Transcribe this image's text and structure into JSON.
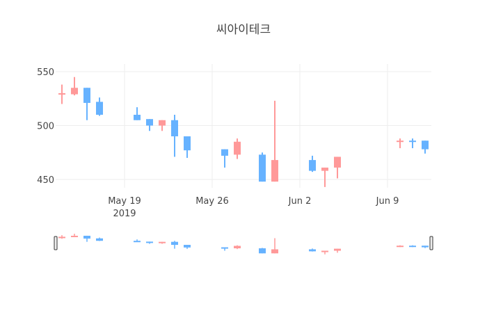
{
  "chart_data": {
    "type": "candlestick",
    "title": "씨아이테크",
    "xlabel": "",
    "ylabel": "",
    "ylim": [
      442,
      552
    ],
    "yticks": [
      450,
      500,
      550
    ],
    "xticks": [
      {
        "date": "2019-05-19",
        "label": "May 19",
        "sublabel": "2019"
      },
      {
        "date": "2019-05-26",
        "label": "May 26",
        "sublabel": ""
      },
      {
        "date": "2019-06-02",
        "label": "Jun 2",
        "sublabel": ""
      },
      {
        "date": "2019-06-09",
        "label": "Jun 9",
        "sublabel": ""
      }
    ],
    "xrange": [
      "2019-05-13T12:00",
      "2019-06-12T12:00"
    ],
    "grid": true,
    "increasing_color": "#ff9999",
    "decreasing_color": "#66b2ff",
    "rangeslider": true,
    "candles": [
      {
        "date": "2019-05-14",
        "open": 529,
        "high": 538,
        "low": 520,
        "close": 530
      },
      {
        "date": "2019-05-15",
        "open": 529,
        "high": 545,
        "low": 528,
        "close": 535
      },
      {
        "date": "2019-05-16",
        "open": 535,
        "high": 535,
        "low": 505,
        "close": 521
      },
      {
        "date": "2019-05-17",
        "open": 522,
        "high": 526,
        "low": 509,
        "close": 510
      },
      {
        "date": "2019-05-20",
        "open": 510,
        "high": 517,
        "low": 505,
        "close": 505
      },
      {
        "date": "2019-05-21",
        "open": 506,
        "high": 506,
        "low": 495,
        "close": 500
      },
      {
        "date": "2019-05-22",
        "open": 500,
        "high": 505,
        "low": 495,
        "close": 505
      },
      {
        "date": "2019-05-23",
        "open": 505,
        "high": 510,
        "low": 471,
        "close": 490
      },
      {
        "date": "2019-05-24",
        "open": 490,
        "high": 490,
        "low": 470,
        "close": 477
      },
      {
        "date": "2019-05-27",
        "open": 478,
        "high": 478,
        "low": 461,
        "close": 472
      },
      {
        "date": "2019-05-28",
        "open": 473,
        "high": 488,
        "low": 469,
        "close": 485
      },
      {
        "date": "2019-05-30",
        "open": 473,
        "high": 475,
        "low": 448,
        "close": 448
      },
      {
        "date": "2019-05-31",
        "open": 448,
        "high": 523,
        "low": 448,
        "close": 468
      },
      {
        "date": "2019-06-03",
        "open": 468,
        "high": 472,
        "low": 457,
        "close": 458
      },
      {
        "date": "2019-06-04",
        "open": 458,
        "high": 461,
        "low": 443,
        "close": 461
      },
      {
        "date": "2019-06-05",
        "open": 461,
        "high": 471,
        "low": 451,
        "close": 471
      },
      {
        "date": "2019-06-10",
        "open": 485,
        "high": 488,
        "low": 479,
        "close": 486
      },
      {
        "date": "2019-06-11",
        "open": 486,
        "high": 488,
        "low": 479,
        "close": 485
      },
      {
        "date": "2019-06-12",
        "open": 486,
        "high": 486,
        "low": 474,
        "close": 478
      }
    ]
  }
}
